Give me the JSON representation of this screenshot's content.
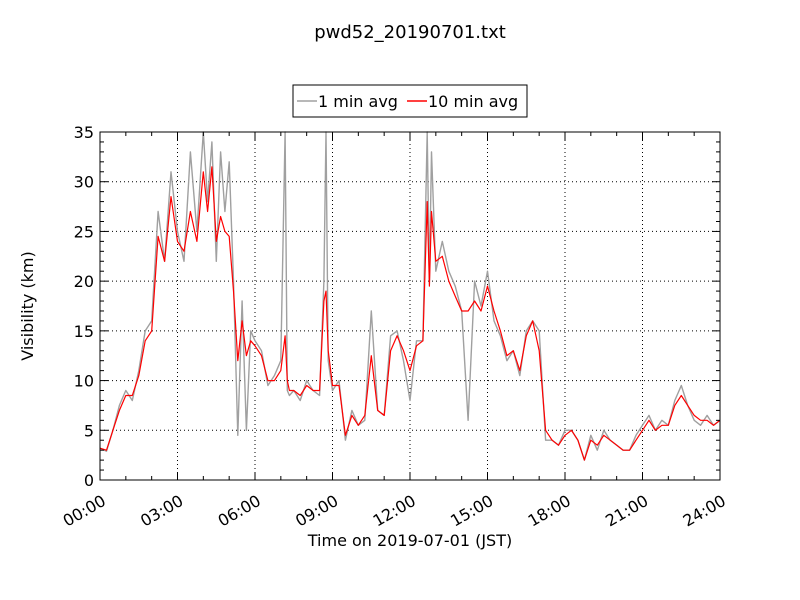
{
  "chart_data": {
    "type": "line",
    "title": "pwd52_20190701.txt",
    "xlabel": "Time on 2019-07-01 (JST)",
    "ylabel": "Visibility (km)",
    "xlim": [
      "00:00",
      "24:00"
    ],
    "ylim": [
      0,
      35
    ],
    "x_ticks": [
      "00:00",
      "03:00",
      "06:00",
      "09:00",
      "12:00",
      "15:00",
      "18:00",
      "21:00",
      "24:00"
    ],
    "y_ticks": [
      "0",
      "5",
      "10",
      "15",
      "20",
      "25",
      "30",
      "35"
    ],
    "grid": true,
    "legend_position": "top-center, above plot",
    "series": [
      {
        "name": "1 min avg",
        "color": "#a0a0a0",
        "x": [
          "00:00",
          "00:15",
          "00:30",
          "00:45",
          "01:00",
          "01:15",
          "01:30",
          "01:45",
          "02:00",
          "02:15",
          "02:30",
          "02:45",
          "03:00",
          "03:15",
          "03:30",
          "03:45",
          "04:00",
          "04:10",
          "04:20",
          "04:30",
          "04:40",
          "04:50",
          "05:00",
          "05:10",
          "05:20",
          "05:30",
          "05:40",
          "05:50",
          "06:00",
          "06:15",
          "06:30",
          "06:45",
          "07:00",
          "07:10",
          "07:15",
          "07:20",
          "07:30",
          "07:45",
          "08:00",
          "08:15",
          "08:30",
          "08:40",
          "08:45",
          "08:50",
          "09:00",
          "09:15",
          "09:30",
          "09:45",
          "10:00",
          "10:15",
          "10:30",
          "10:45",
          "11:00",
          "11:15",
          "11:30",
          "11:45",
          "12:00",
          "12:15",
          "12:30",
          "12:40",
          "12:45",
          "12:50",
          "13:00",
          "13:15",
          "13:30",
          "13:45",
          "14:00",
          "14:15",
          "14:30",
          "14:45",
          "15:00",
          "15:15",
          "15:30",
          "15:45",
          "16:00",
          "16:15",
          "16:30",
          "16:45",
          "17:00",
          "17:15",
          "17:30",
          "17:45",
          "18:00",
          "18:15",
          "18:30",
          "18:45",
          "19:00",
          "19:15",
          "19:30",
          "19:45",
          "20:00",
          "20:15",
          "20:30",
          "20:45",
          "21:00",
          "21:15",
          "21:30",
          "21:45",
          "22:00",
          "22:15",
          "22:30",
          "22:45",
          "23:00",
          "23:15",
          "23:30",
          "23:45",
          "24:00"
        ],
        "y": [
          3.2,
          2.9,
          5.0,
          7.5,
          9.0,
          8.0,
          11.0,
          15.0,
          16.0,
          27.0,
          22.0,
          31.0,
          25.0,
          22.0,
          33.0,
          25.0,
          35.0,
          28.0,
          34.0,
          22.0,
          33.0,
          27.0,
          32.0,
          20.0,
          4.5,
          18.0,
          5.0,
          15.0,
          14.0,
          13.0,
          9.5,
          10.5,
          12.0,
          35.0,
          9.0,
          8.5,
          9.0,
          8.0,
          10.0,
          9.0,
          8.5,
          20.0,
          35.0,
          12.0,
          9.0,
          10.0,
          4.0,
          7.0,
          5.5,
          6.0,
          17.0,
          7.0,
          6.5,
          14.5,
          15.0,
          12.0,
          8.0,
          14.0,
          14.0,
          35.0,
          20.0,
          33.0,
          21.0,
          24.0,
          21.0,
          19.5,
          17.0,
          6.0,
          20.0,
          17.5,
          21.0,
          16.0,
          14.5,
          12.0,
          13.0,
          10.5,
          15.0,
          16.0,
          15.0,
          4.0,
          4.0,
          3.5,
          5.0,
          5.0,
          4.0,
          2.0,
          4.5,
          3.0,
          5.0,
          4.0,
          3.5,
          3.0,
          3.0,
          4.5,
          5.5,
          6.5,
          5.0,
          6.0,
          5.5,
          8.0,
          9.5,
          7.5,
          6.0,
          5.5,
          6.5,
          5.5,
          6.0
        ]
      },
      {
        "name": "10 min avg",
        "color": "#ff0000",
        "x": [
          "00:00",
          "00:15",
          "00:30",
          "00:45",
          "01:00",
          "01:15",
          "01:30",
          "01:45",
          "02:00",
          "02:15",
          "02:30",
          "02:45",
          "03:00",
          "03:15",
          "03:30",
          "03:45",
          "04:00",
          "04:10",
          "04:20",
          "04:30",
          "04:40",
          "04:50",
          "05:00",
          "05:10",
          "05:20",
          "05:30",
          "05:40",
          "05:50",
          "06:00",
          "06:15",
          "06:30",
          "06:45",
          "07:00",
          "07:10",
          "07:15",
          "07:20",
          "07:30",
          "07:45",
          "08:00",
          "08:15",
          "08:30",
          "08:40",
          "08:45",
          "08:50",
          "09:00",
          "09:15",
          "09:30",
          "09:45",
          "10:00",
          "10:15",
          "10:30",
          "10:45",
          "11:00",
          "11:15",
          "11:30",
          "11:45",
          "12:00",
          "12:15",
          "12:30",
          "12:40",
          "12:45",
          "12:50",
          "13:00",
          "13:15",
          "13:30",
          "13:45",
          "14:00",
          "14:15",
          "14:30",
          "14:45",
          "15:00",
          "15:15",
          "15:30",
          "15:45",
          "16:00",
          "16:15",
          "16:30",
          "16:45",
          "17:00",
          "17:15",
          "17:30",
          "17:45",
          "18:00",
          "18:15",
          "18:30",
          "18:45",
          "19:00",
          "19:15",
          "19:30",
          "19:45",
          "20:00",
          "20:15",
          "20:30",
          "20:45",
          "21:00",
          "21:15",
          "21:30",
          "21:45",
          "22:00",
          "22:15",
          "22:30",
          "22:45",
          "23:00",
          "23:15",
          "23:30",
          "23:45",
          "24:00"
        ],
        "y": [
          3.2,
          3.0,
          5.0,
          7.0,
          8.5,
          8.5,
          10.5,
          14.0,
          15.0,
          24.5,
          22.0,
          28.5,
          24.0,
          23.0,
          27.0,
          24.0,
          31.0,
          27.0,
          31.5,
          24.0,
          26.5,
          25.0,
          24.5,
          19.0,
          12.0,
          16.0,
          12.5,
          14.0,
          13.5,
          12.5,
          10.0,
          10.0,
          11.0,
          14.5,
          10.0,
          9.0,
          9.0,
          8.5,
          9.5,
          9.0,
          9.0,
          18.0,
          19.0,
          13.0,
          9.5,
          9.5,
          4.5,
          6.5,
          5.5,
          6.5,
          12.5,
          7.0,
          6.5,
          13.0,
          14.5,
          13.0,
          11.0,
          13.5,
          14.0,
          28.0,
          19.5,
          27.0,
          22.0,
          22.5,
          20.0,
          18.5,
          17.0,
          17.0,
          18.0,
          17.0,
          19.5,
          17.0,
          15.0,
          12.5,
          13.0,
          11.0,
          14.5,
          16.0,
          13.0,
          5.0,
          4.0,
          3.5,
          4.5,
          5.0,
          4.0,
          2.0,
          4.0,
          3.5,
          4.5,
          4.0,
          3.5,
          3.0,
          3.0,
          4.0,
          5.0,
          6.0,
          5.0,
          5.5,
          5.5,
          7.5,
          8.5,
          7.5,
          6.5,
          6.0,
          6.0,
          5.5,
          6.0
        ]
      }
    ]
  }
}
